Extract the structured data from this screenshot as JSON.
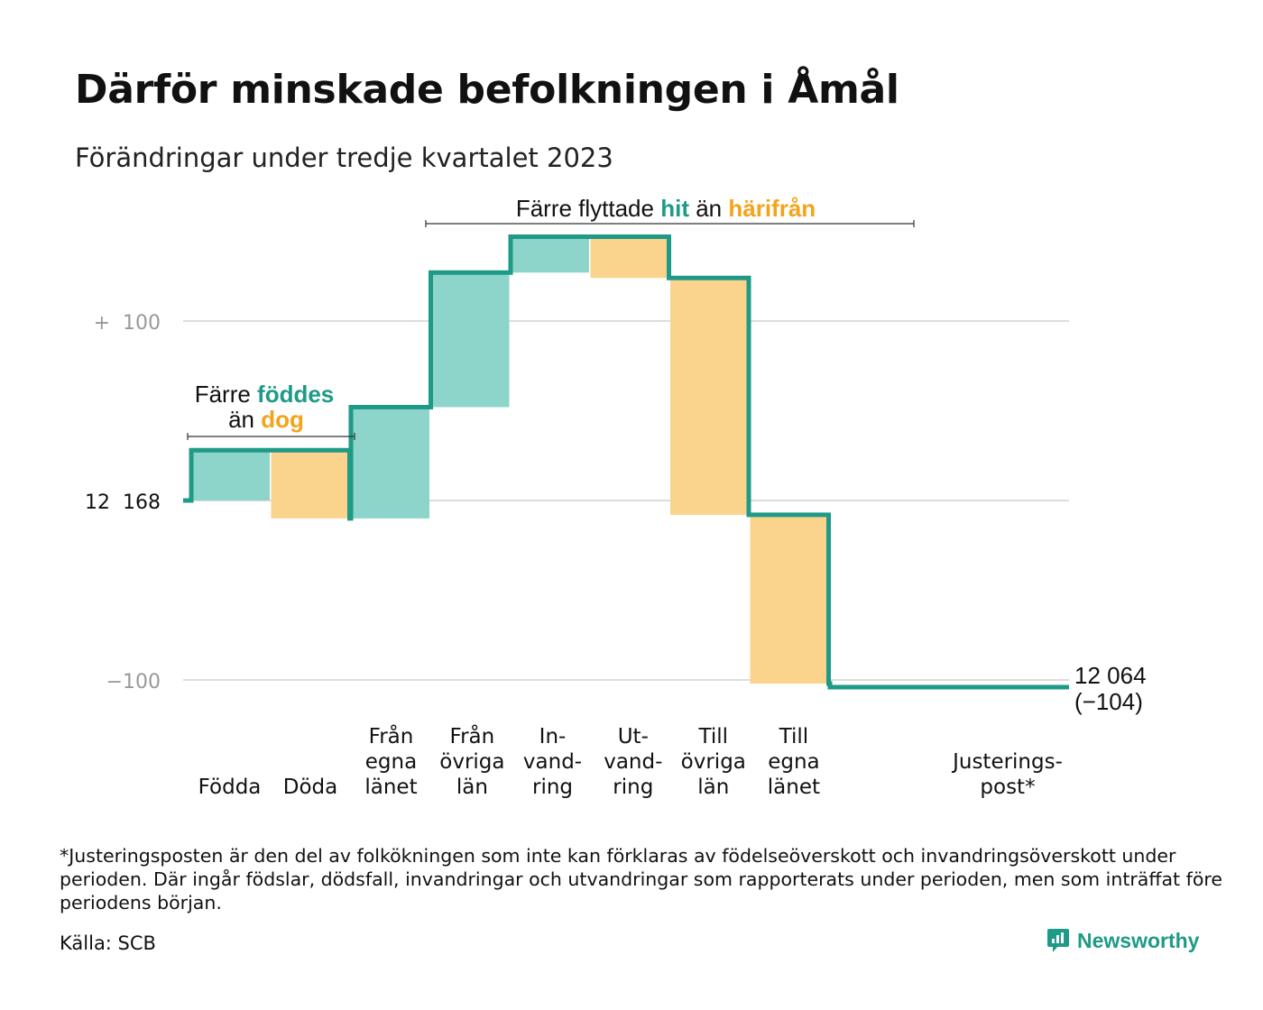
{
  "header": {
    "title": "Därför minskade befolkningen i Åmål",
    "subtitle": "Förändringar under tredje kvartalet 2023"
  },
  "annotations": {
    "births_deaths": {
      "line1_pre": "Färre ",
      "line1_hl": "föddes",
      "line2_pre": "än ",
      "line2_hl": "dog"
    },
    "migration": {
      "pre": "Färre flyttade ",
      "hl1": "hit",
      "mid": "än ",
      "hl2": "härifrån"
    }
  },
  "end_label": {
    "value": "12 064",
    "change": "(−104)"
  },
  "footnote": "*Justeringsposten är den del av folkökningen som inte kan förklaras av födelseöverskott och invandringsöverskott under perioden. Där ingår födslar, dödsfall, invandringar och utvandringar som rapporterats under perioden, men som inträffat före periodens början.",
  "source": "Källa: SCB",
  "brand": {
    "name": "Newsworthy",
    "icon": "newsworthy-logo-icon"
  },
  "colors": {
    "increase": "#8dd4cb",
    "decrease": "#fad48c",
    "line": "#1e9a87",
    "highlight_increase": "#1e9a87",
    "highlight_decrease": "#f5a31a",
    "grid": "#dddddd",
    "axis_label": "#999999"
  },
  "chart_data": {
    "type": "waterfall",
    "start_value": 12168,
    "end_value": 12064,
    "total_change": -104,
    "ylim": [
      -100,
      100
    ],
    "y_ticks": [
      {
        "value": 100,
        "label": "+  100"
      },
      {
        "value": 0,
        "label": "12  168"
      },
      {
        "value": -100,
        "label": "−100"
      }
    ],
    "steps": [
      {
        "label": [
          "Födda"
        ],
        "value": 28,
        "kind": "increase"
      },
      {
        "label": [
          "Döda"
        ],
        "value": -38,
        "kind": "decrease"
      },
      {
        "label": [
          "Från",
          "egna",
          "länet"
        ],
        "value": 62,
        "kind": "increase"
      },
      {
        "label": [
          "Från",
          "övriga",
          "län"
        ],
        "value": 75,
        "kind": "increase"
      },
      {
        "label": [
          "In-",
          "vand-",
          "ring"
        ],
        "value": 20,
        "kind": "increase"
      },
      {
        "label": [
          "Ut-",
          "vand-",
          "ring"
        ],
        "value": -23,
        "kind": "decrease"
      },
      {
        "label": [
          "Till",
          "övriga",
          "län"
        ],
        "value": -132,
        "kind": "decrease"
      },
      {
        "label": [
          "Till",
          "egna",
          "länet"
        ],
        "value": -94,
        "kind": "decrease"
      },
      {
        "label": [
          "Justerings-",
          "post*"
        ],
        "value": -2,
        "kind": "adjustment"
      }
    ]
  }
}
